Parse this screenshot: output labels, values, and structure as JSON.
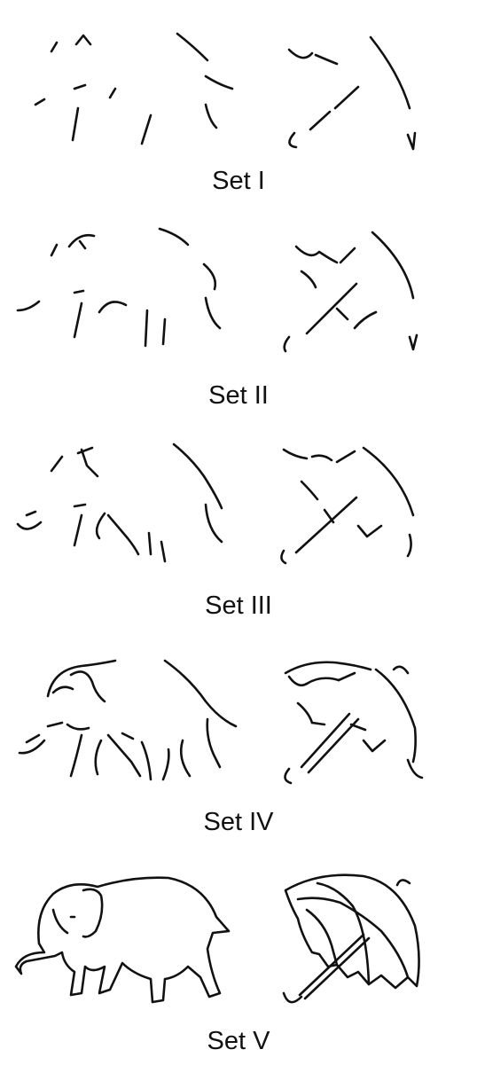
{
  "figure": {
    "description_objects": [
      "elephant",
      "umbrella"
    ],
    "stages": [
      {
        "label": "Set I"
      },
      {
        "label": "Set II"
      },
      {
        "label": "Set III"
      },
      {
        "label": "Set IV"
      },
      {
        "label": "Set V"
      }
    ]
  },
  "colors": {
    "ink": "#111111",
    "background": "#ffffff"
  }
}
